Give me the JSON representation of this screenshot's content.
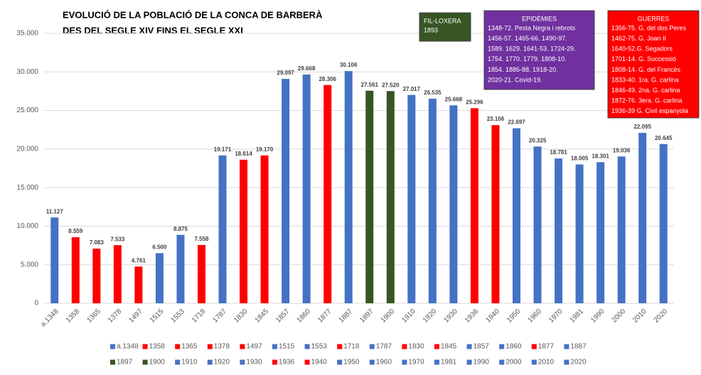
{
  "chart_data": {
    "type": "bar",
    "title": [
      "EVOLUCIÓ DE LA POBLACIÓ DE LA CONCA DE BARBERÀ",
      "DES DEL SEGLE XIV FINS EL SEGLE XXI"
    ],
    "categories": [
      "a.1348",
      "1358",
      "1365",
      "1378",
      "1497",
      "1515",
      "1553",
      "1718",
      "1787",
      "1830",
      "1845",
      "1857",
      "1860",
      "1877",
      "1887",
      "1897",
      "1900",
      "1910",
      "1920",
      "1930",
      "1936",
      "1940",
      "1950",
      "1960",
      "1970",
      "1981",
      "1990",
      "2000",
      "2010",
      "2020"
    ],
    "values": [
      11127,
      8559,
      7083,
      7533,
      4761,
      6500,
      8875,
      7558,
      19171,
      18614,
      19170,
      29097,
      29668,
      28306,
      30106,
      27561,
      27520,
      27017,
      26535,
      25668,
      25296,
      23106,
      22697,
      20325,
      18781,
      18005,
      18301,
      19036,
      22095,
      20645
    ],
    "value_labels": [
      "11.127",
      "8.559",
      "7.083",
      "7.533",
      "4.761",
      "6.500",
      "8.875",
      "7.558",
      "19.171",
      "18.614",
      "19.170",
      "29.097",
      "29.668",
      "28.306",
      "30.106",
      "27.561",
      "27.520",
      "27.017",
      "26.535",
      "25.668",
      "25.296",
      "23.106",
      "22.697",
      "20.325",
      "18.781",
      "18.005",
      "18.301",
      "19.036",
      "22.095",
      "20.645"
    ],
    "colors": [
      "#4472c4",
      "#ff0000",
      "#ff0000",
      "#ff0000",
      "#ff0000",
      "#4472c4",
      "#4472c4",
      "#ff0000",
      "#4472c4",
      "#ff0000",
      "#ff0000",
      "#4472c4",
      "#4472c4",
      "#ff0000",
      "#4472c4",
      "#375623",
      "#375623",
      "#4472c4",
      "#4472c4",
      "#4472c4",
      "#ff0000",
      "#ff0000",
      "#4472c4",
      "#4472c4",
      "#4472c4",
      "#4472c4",
      "#4472c4",
      "#4472c4",
      "#4472c4",
      "#4472c4"
    ],
    "ylim": [
      0,
      35000
    ],
    "yticks": [
      0,
      {
        "value": 5000,
        "label": "5.000"
      },
      {
        "value": 10000,
        "label": "10.000"
      },
      {
        "value": 15000,
        "label": "15.000"
      },
      {
        "value": 20000,
        "label": "20.000"
      },
      {
        "value": 25000,
        "label": "25.000"
      },
      {
        "value": 30000,
        "label": "30.000"
      },
      {
        "value": 35000,
        "label": "35.000"
      }
    ],
    "grid": true,
    "legend": "bottom",
    "annotations": [
      {
        "title": "FIL-LOXERA",
        "lines": [
          "1893"
        ],
        "color": "#375623"
      },
      {
        "title": "EPIDÈMIES",
        "lines": [
          "1348-72. Pesta Negra i rebrots",
          "1456-57. 1465-66. 1490-97.",
          "1589. 1629. 1641-53. 1724-29.",
          "1754. 1770. 1779. 1808-10.",
          "1854. 1886-88. 1918-20.",
          "2020-21. Covid-19."
        ],
        "color": "#7030a0"
      },
      {
        "title": "GUERRES",
        "lines": [
          "1356-75. G. del dos Peres",
          "1462-75. G. Joan II",
          "1640-52.G. Segadors",
          "1701-14. G. Successió",
          "1808-14. G. del Francès",
          "1833-40. 1ra. G. carlina",
          "1846-49. 2na. G. carlina",
          "1872-76. 3era. G. carlina",
          "1936-39 G. Civil espanyola"
        ],
        "color": "#ff0000"
      }
    ]
  }
}
